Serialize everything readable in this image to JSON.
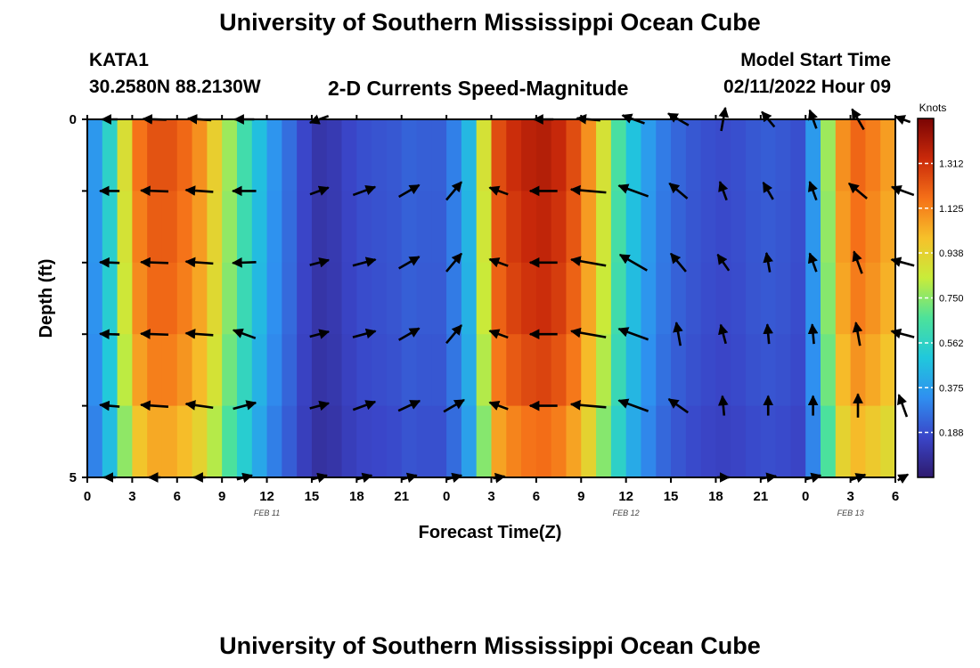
{
  "page": {
    "title": "University of Southern Mississippi Ocean Cube",
    "station": "KATA1",
    "coordinates": "30.2580N  88.2130W",
    "plot_title": "2-D Currents Speed-Magnitude",
    "model_label": "Model Start Time",
    "model_start": "02/11/2022 Hour 09",
    "footer_title": "University of Southern Mississippi Ocean Cube"
  },
  "chart_data": {
    "type": "heatmap",
    "title": "2-D Currents Speed-Magnitude",
    "xlabel": "Forecast Time(Z)",
    "ylabel": "Depth (ft)",
    "x_tick_labels": [
      "0",
      "3",
      "6",
      "9",
      "12",
      "15",
      "18",
      "21",
      "0",
      "3",
      "6",
      "9",
      "12",
      "15",
      "18",
      "21",
      "0",
      "3",
      "6"
    ],
    "x_range_hours": [
      0,
      54
    ],
    "y_tick_labels": [
      "0",
      "5"
    ],
    "y_range": [
      0,
      5
    ],
    "date_labels": [
      {
        "text": "FEB 11",
        "hour": 12
      },
      {
        "text": "FEB 12",
        "hour": 36
      },
      {
        "text": "FEB 13",
        "hour": 51
      }
    ],
    "colorbar": {
      "unit": "Knots",
      "ticks": [
        "1.312",
        "1.125",
        "0.938",
        "0.750",
        "0.562",
        "0.375",
        "0.188"
      ],
      "tick_values": [
        1.312,
        1.125,
        0.938,
        0.75,
        0.562,
        0.375,
        0.188
      ],
      "min": 0,
      "max": 1.5,
      "colors": [
        "#2e1a6e",
        "#3a45c8",
        "#2f8ff0",
        "#20c8dc",
        "#4de29a",
        "#c8ec3a",
        "#f6c12a",
        "#f57018",
        "#c9290a",
        "#7a0404"
      ]
    },
    "speed_profile": {
      "hours": [
        0,
        1,
        2,
        3,
        4,
        5,
        6,
        7,
        8,
        9,
        10,
        11,
        12,
        13,
        14,
        15,
        16,
        17,
        18,
        19,
        20,
        21,
        22,
        23,
        24,
        25,
        26,
        27,
        28,
        29,
        30,
        31,
        32,
        33,
        34,
        35,
        36,
        37,
        38,
        39,
        40,
        41,
        42,
        43,
        44,
        45,
        46,
        47,
        48,
        49,
        50,
        51,
        52,
        53,
        54
      ],
      "values": [
        0.3,
        0.42,
        0.68,
        1.1,
        1.22,
        1.25,
        1.22,
        1.15,
        1.05,
        0.85,
        0.7,
        0.55,
        0.4,
        0.3,
        0.22,
        0.12,
        0.1,
        0.15,
        0.18,
        0.2,
        0.2,
        0.22,
        0.25,
        0.2,
        0.25,
        0.35,
        0.55,
        1.2,
        1.3,
        1.35,
        1.38,
        1.38,
        1.3,
        1.2,
        1.0,
        0.75,
        0.55,
        0.42,
        0.32,
        0.26,
        0.22,
        0.2,
        0.18,
        0.18,
        0.2,
        0.22,
        0.22,
        0.2,
        0.18,
        0.55,
        1.0,
        1.2,
        1.18,
        1.1,
        1.05
      ]
    },
    "depth_factor": [
      1.0,
      0.98,
      0.96,
      0.92,
      0.85
    ],
    "vectors": {
      "hours": [
        1.5,
        4.5,
        7.5,
        10.5,
        15.5,
        18.5,
        21.5,
        24.5,
        27.5,
        30.5,
        33.5,
        36.5,
        39.5,
        42.5,
        45.5,
        48.5,
        51.5,
        54.5
      ],
      "depths": [
        0,
        1,
        2,
        3,
        4,
        5
      ],
      "direction_deg": [
        [
          180,
          178,
          176,
          180,
          200,
          null,
          null,
          null,
          null,
          180,
          175,
          160,
          150,
          80,
          130,
          110,
          120,
          160
        ],
        [
          180,
          178,
          176,
          180,
          20,
          20,
          30,
          50,
          160,
          180,
          175,
          160,
          140,
          110,
          120,
          110,
          140,
          160
        ],
        [
          178,
          178,
          176,
          182,
          15,
          15,
          30,
          50,
          160,
          180,
          170,
          150,
          130,
          125,
          100,
          110,
          110,
          165
        ],
        [
          178,
          178,
          176,
          160,
          15,
          15,
          30,
          50,
          160,
          180,
          170,
          160,
          100,
          105,
          95,
          95,
          100,
          165
        ],
        [
          175,
          176,
          172,
          15,
          15,
          20,
          25,
          30,
          160,
          180,
          175,
          160,
          145,
          95,
          90,
          90,
          90,
          110
        ],
        [
          180,
          180,
          180,
          15,
          15,
          15,
          15,
          15,
          10,
          null,
          null,
          null,
          null,
          0,
          10,
          15,
          20,
          30
        ]
      ],
      "magnitude": [
        [
          0.4,
          0.6,
          0.6,
          0.5,
          0.5,
          0,
          0,
          0,
          0,
          0.5,
          0.6,
          0.6,
          0.6,
          0.6,
          0.5,
          0.5,
          0.6,
          0.4
        ],
        [
          0.5,
          0.7,
          0.7,
          0.6,
          0.5,
          0.6,
          0.6,
          0.6,
          0.5,
          0.7,
          0.9,
          0.8,
          0.6,
          0.5,
          0.5,
          0.5,
          0.6,
          0.6
        ],
        [
          0.5,
          0.7,
          0.7,
          0.6,
          0.5,
          0.6,
          0.6,
          0.6,
          0.5,
          0.7,
          0.9,
          0.8,
          0.6,
          0.5,
          0.5,
          0.5,
          0.6,
          0.6
        ],
        [
          0.5,
          0.7,
          0.7,
          0.6,
          0.5,
          0.6,
          0.6,
          0.6,
          0.5,
          0.7,
          0.9,
          0.8,
          0.6,
          0.5,
          0.5,
          0.5,
          0.6,
          0.6
        ],
        [
          0.5,
          0.7,
          0.7,
          0.6,
          0.5,
          0.6,
          0.6,
          0.6,
          0.5,
          0.7,
          0.9,
          0.8,
          0.6,
          0.5,
          0.5,
          0.5,
          0.6,
          0.6
        ],
        [
          0.3,
          0.3,
          0.3,
          0.4,
          0.4,
          0.4,
          0.4,
          0.4,
          0.3,
          0,
          0,
          0,
          0,
          0.3,
          0.4,
          0.4,
          0.4,
          0.3
        ]
      ]
    },
    "grid": false
  }
}
